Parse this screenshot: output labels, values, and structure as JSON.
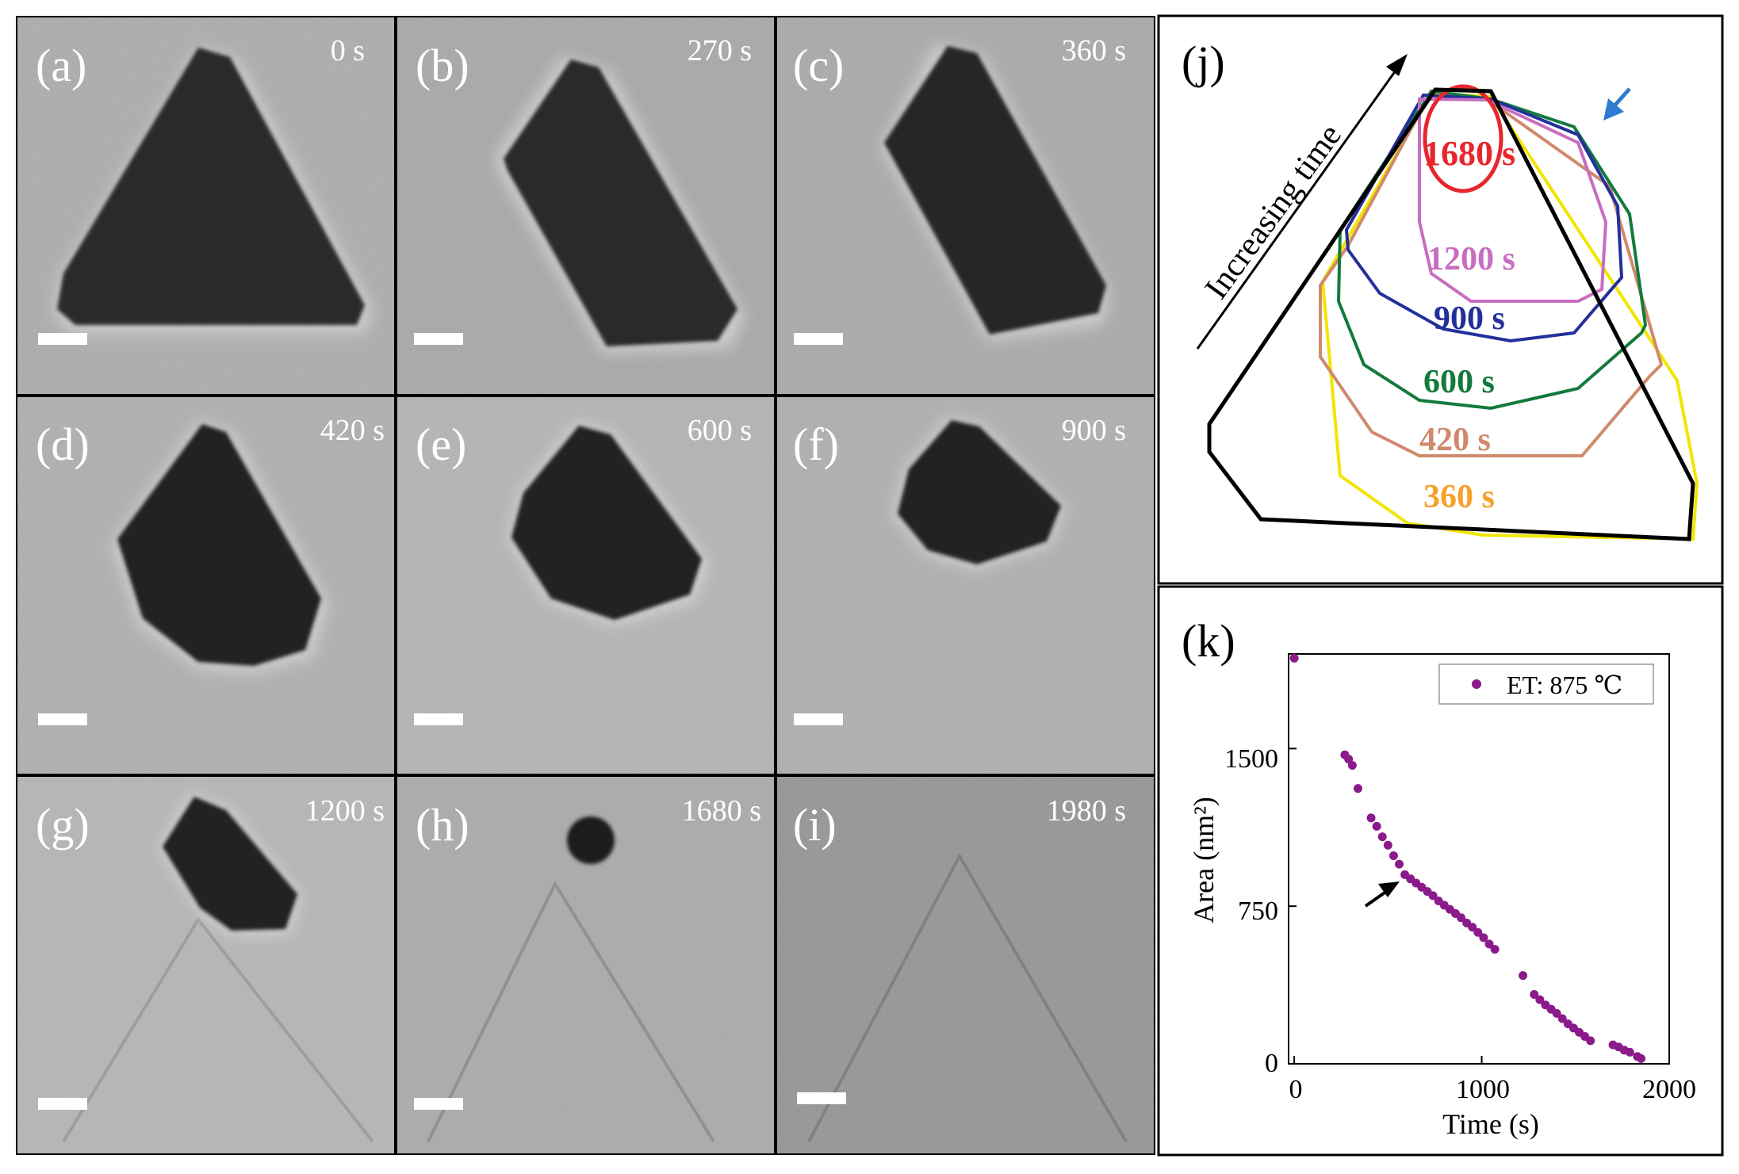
{
  "panels": [
    {
      "letter": "(a)",
      "time": "0 s"
    },
    {
      "letter": "(b)",
      "time": "270 s"
    },
    {
      "letter": "(c)",
      "time": "360 s"
    },
    {
      "letter": "(d)",
      "time": "420 s"
    },
    {
      "letter": "(e)",
      "time": "600 s"
    },
    {
      "letter": "(f)",
      "time": "900 s"
    },
    {
      "letter": "(g)",
      "time": "1200 s"
    },
    {
      "letter": "(h)",
      "time": "1680 s"
    },
    {
      "letter": "(i)",
      "time": "1980 s"
    }
  ],
  "panel_j": {
    "letter": "(j)",
    "arrow_label": "Increasing time",
    "contours": [
      {
        "time": "1680 s",
        "color": "#e8262d"
      },
      {
        "time": "1200 s",
        "color": "#c86ec0"
      },
      {
        "time": "900 s",
        "color": "#23309a"
      },
      {
        "time": "600 s",
        "color": "#137a3d"
      },
      {
        "time": "420 s",
        "color": "#cf8a6c"
      },
      {
        "time": "360 s",
        "color": "#f7a128"
      }
    ],
    "colors": {
      "outline": "#000000",
      "yellow_contour": "#f2e500",
      "pointer_arrow": "#2f7bd1"
    }
  },
  "panel_k": {
    "letter": "(k)",
    "marker_color": "#8b1a8b"
  },
  "chart_data": {
    "type": "scatter",
    "title": "",
    "xlabel": "Time (s)",
    "ylabel": "Area (nm²)",
    "xlim": [
      -30,
      2000
    ],
    "ylim": [
      0,
      1950
    ],
    "xticks": [
      "0",
      "1000",
      "2000"
    ],
    "yticks": [
      "0",
      "750",
      "1500"
    ],
    "legend": {
      "label": "ET: 875 ℃",
      "position": "top-right"
    },
    "series": [
      {
        "name": "ET: 875 ℃",
        "x": [
          0,
          270,
          290,
          310,
          340,
          410,
          440,
          470,
          500,
          530,
          560,
          590,
          620,
          650,
          680,
          710,
          740,
          770,
          800,
          830,
          860,
          890,
          920,
          950,
          980,
          1010,
          1040,
          1070,
          1220,
          1280,
          1310,
          1340,
          1370,
          1400,
          1430,
          1460,
          1490,
          1520,
          1550,
          1580,
          1700,
          1730,
          1760,
          1790,
          1830,
          1850
        ],
        "y": [
          1930,
          1470,
          1450,
          1420,
          1310,
          1170,
          1130,
          1080,
          1040,
          990,
          950,
          900,
          880,
          860,
          840,
          820,
          800,
          775,
          755,
          735,
          715,
          695,
          670,
          650,
          625,
          600,
          570,
          545,
          420,
          330,
          305,
          280,
          260,
          240,
          215,
          190,
          170,
          150,
          130,
          110,
          90,
          80,
          65,
          55,
          35,
          25
        ]
      }
    ]
  }
}
